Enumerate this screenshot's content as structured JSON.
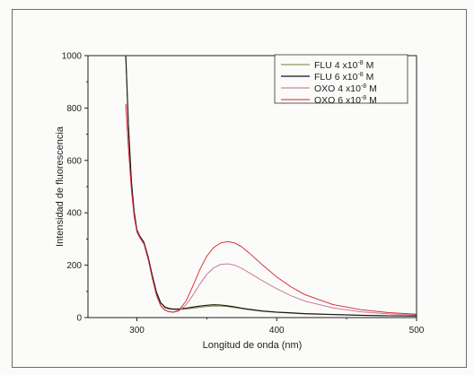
{
  "chart_data": {
    "type": "line",
    "title": "",
    "xlabel": "Longitud de onda (nm)",
    "ylabel": "Intensidad de fluorescencia",
    "xlim": [
      265,
      500
    ],
    "ylim": [
      0,
      1000
    ],
    "x_ticks": [
      300,
      400,
      500
    ],
    "x_tick_labels": [
      "300",
      "400",
      "500"
    ],
    "y_ticks": [
      0,
      200,
      400,
      600,
      800,
      1000
    ],
    "y_tick_labels": [
      "0",
      "200",
      "400",
      "600",
      "800",
      "1000"
    ],
    "grid": false,
    "legend_position": "top-right",
    "series": [
      {
        "name": "FLU 4 x10-8 M",
        "legend_base": "FLU 4 x10",
        "legend_exp": "-8",
        "legend_unit": " M",
        "color": "#7a7a3a",
        "x": [
          292,
          294,
          296,
          298,
          300,
          302,
          305,
          308,
          311,
          314,
          317,
          320,
          323,
          326,
          330,
          335,
          340,
          345,
          350,
          355,
          360,
          365,
          370,
          375,
          380,
          390,
          400,
          410,
          420,
          440,
          460,
          480,
          500
        ],
        "y": [
          1000,
          720,
          520,
          400,
          330,
          308,
          285,
          230,
          160,
          95,
          55,
          38,
          33,
          31,
          31,
          33,
          36,
          39,
          42,
          44,
          44,
          42,
          38,
          34,
          30,
          24,
          20,
          17,
          14,
          11,
          9,
          7,
          6
        ]
      },
      {
        "name": "FLU 6 x10-8 M",
        "legend_base": "FLU 6 x10",
        "legend_exp": "-8",
        "legend_unit": " M",
        "color": "#111111",
        "x": [
          292,
          294,
          296,
          298,
          300,
          302,
          305,
          308,
          311,
          314,
          317,
          320,
          323,
          326,
          330,
          335,
          340,
          345,
          350,
          355,
          360,
          365,
          370,
          375,
          380,
          390,
          400,
          410,
          420,
          440,
          460,
          480,
          500
        ],
        "y": [
          1000,
          725,
          525,
          405,
          335,
          312,
          288,
          232,
          162,
          97,
          57,
          40,
          35,
          33,
          33,
          36,
          40,
          44,
          47,
          49,
          48,
          45,
          41,
          36,
          32,
          25,
          21,
          18,
          15,
          12,
          9,
          7,
          6
        ]
      },
      {
        "name": "OXO 4 x10-8 M",
        "legend_base": "OXO 4 x10",
        "legend_exp": "-8",
        "legend_unit": " M",
        "color": "#c26a8e",
        "x": [
          292,
          294,
          296,
          298,
          300,
          302,
          305,
          308,
          311,
          314,
          317,
          320,
          323,
          326,
          330,
          335,
          340,
          345,
          350,
          355,
          360,
          365,
          370,
          375,
          380,
          390,
          400,
          410,
          420,
          440,
          460,
          480,
          500
        ],
        "y": [
          810,
          640,
          490,
          385,
          325,
          305,
          280,
          222,
          150,
          85,
          45,
          28,
          22,
          20,
          25,
          48,
          85,
          128,
          165,
          190,
          203,
          205,
          200,
          188,
          172,
          140,
          110,
          84,
          63,
          37,
          22,
          14,
          10
        ]
      },
      {
        "name": "OXO 6 x10-8 M",
        "legend_base": "OXO 6 x10",
        "legend_exp": "-8",
        "legend_unit": " M",
        "color": "#d8212b",
        "x": [
          292,
          294,
          296,
          298,
          300,
          302,
          305,
          308,
          311,
          314,
          317,
          320,
          323,
          326,
          330,
          335,
          340,
          345,
          350,
          355,
          360,
          365,
          370,
          375,
          380,
          390,
          400,
          410,
          420,
          440,
          460,
          480,
          500
        ],
        "y": [
          815,
          645,
          495,
          390,
          330,
          308,
          283,
          225,
          152,
          86,
          46,
          29,
          23,
          21,
          28,
          62,
          120,
          183,
          235,
          268,
          285,
          290,
          285,
          270,
          248,
          200,
          155,
          118,
          88,
          50,
          30,
          19,
          13
        ]
      }
    ]
  }
}
